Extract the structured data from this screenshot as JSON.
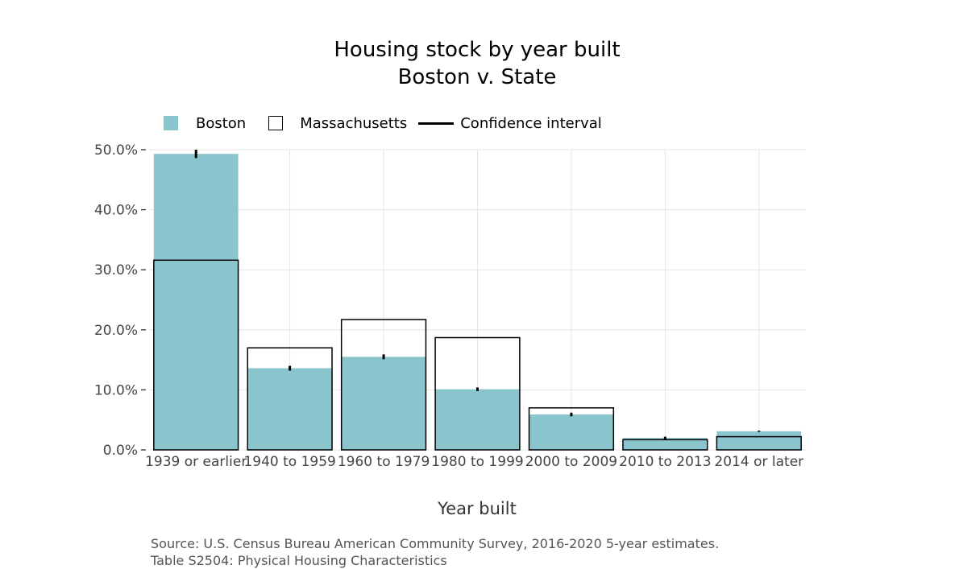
{
  "chart_data": {
    "type": "bar",
    "title": "Housing stock by year built",
    "subtitle": "Boston  v. State",
    "xlabel": "Year built",
    "ylabel": "",
    "ylim": [
      0,
      50
    ],
    "yticks": [
      0,
      10,
      20,
      30,
      40,
      50
    ],
    "ytick_labels": [
      "0.0%",
      "10.0%",
      "20.0%",
      "30.0%",
      "40.0%",
      "50.0%"
    ],
    "categories": [
      "1939 or earlier",
      "1940 to 1959",
      "1960 to 1979",
      "1980 to 1999",
      "2000 to 2009",
      "2010 to 2013",
      "2014 or later"
    ],
    "series": [
      {
        "name": "Boston",
        "values": [
          49.3,
          13.6,
          15.5,
          10.1,
          5.9,
          2.0,
          3.1
        ],
        "color": "#8AC5CD"
      },
      {
        "name": "Massachusetts",
        "values": [
          31.6,
          17.0,
          21.7,
          18.7,
          7.0,
          1.7,
          2.2
        ],
        "color": "#000000"
      }
    ],
    "confidence_interval": [
      [
        48.6,
        50.0
      ],
      [
        13.2,
        14.0
      ],
      [
        15.1,
        15.9
      ],
      [
        9.8,
        10.4
      ],
      [
        5.6,
        6.2
      ],
      [
        1.8,
        2.2
      ],
      [
        3.0,
        3.2
      ]
    ],
    "legend": {
      "placement": "top-left",
      "entries": [
        "Boston",
        "Massachusetts",
        "Confidence interval"
      ]
    },
    "grid": true
  },
  "source": {
    "line1": "Source: U.S. Census Bureau American Community Survey, 2016-2020 5-year estimates.",
    "line2": "Table S2504: Physical Housing Characteristics"
  }
}
